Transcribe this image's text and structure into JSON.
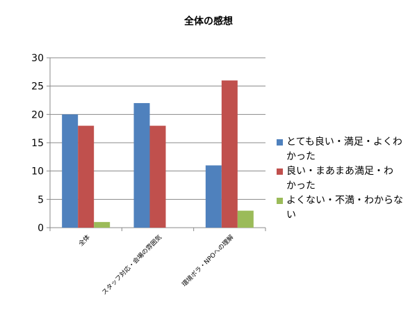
{
  "chart_data": {
    "type": "bar",
    "title": "全体の感想",
    "categories": [
      "全体",
      "スタッフ対応・会場の雰囲気",
      "環境ボラ・NPOへの理解"
    ],
    "series": [
      {
        "name": "とても良い・満足・よくわかった",
        "legend_lines": [
          "とても良い・満足・よくわ",
          "かった"
        ],
        "color": "#4F81BD",
        "values": [
          20,
          22,
          11
        ]
      },
      {
        "name": "良い・まあまあ満足・わかった",
        "legend_lines": [
          "良い・まあまあ満足・わ",
          "かった"
        ],
        "color": "#C0504D",
        "values": [
          18,
          18,
          26
        ]
      },
      {
        "name": "よくない・不満・わからない",
        "legend_lines": [
          "よくない・不満・わからな",
          "い"
        ],
        "color": "#9BBB59",
        "values": [
          1,
          0,
          3
        ]
      }
    ],
    "ylim": [
      0,
      30
    ],
    "yticks": [
      0,
      5,
      10,
      15,
      20,
      25,
      30
    ],
    "grid": true,
    "legend_position": "right"
  }
}
